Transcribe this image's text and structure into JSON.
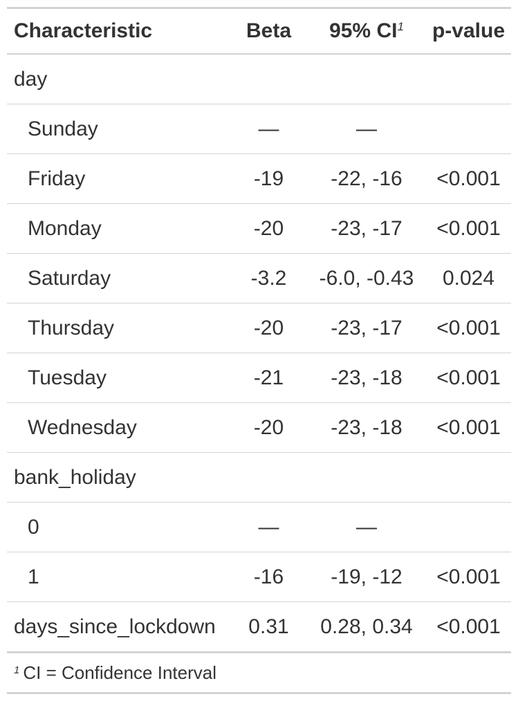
{
  "table": {
    "headers": {
      "characteristic": "Characteristic",
      "beta": "Beta",
      "ci": "95% CI",
      "ci_footnote_mark": "1",
      "pvalue": "p-value"
    },
    "rows": [
      {
        "label": "day",
        "beta": "",
        "ci": "",
        "p": "",
        "indent": false
      },
      {
        "label": "Sunday",
        "beta": "—",
        "ci": "—",
        "p": "",
        "indent": true
      },
      {
        "label": "Friday",
        "beta": "-19",
        "ci": "-22, -16",
        "p": "<0.001",
        "indent": true
      },
      {
        "label": "Monday",
        "beta": "-20",
        "ci": "-23, -17",
        "p": "<0.001",
        "indent": true
      },
      {
        "label": "Saturday",
        "beta": "-3.2",
        "ci": "-6.0, -0.43",
        "p": "0.024",
        "indent": true
      },
      {
        "label": "Thursday",
        "beta": "-20",
        "ci": "-23, -17",
        "p": "<0.001",
        "indent": true
      },
      {
        "label": "Tuesday",
        "beta": "-21",
        "ci": "-23, -18",
        "p": "<0.001",
        "indent": true
      },
      {
        "label": "Wednesday",
        "beta": "-20",
        "ci": "-23, -18",
        "p": "<0.001",
        "indent": true
      },
      {
        "label": "bank_holiday",
        "beta": "",
        "ci": "",
        "p": "",
        "indent": false
      },
      {
        "label": "0",
        "beta": "—",
        "ci": "—",
        "p": "",
        "indent": true
      },
      {
        "label": "1",
        "beta": "-16",
        "ci": "-19, -12",
        "p": "<0.001",
        "indent": true
      },
      {
        "label": "days_since_lockdown",
        "beta": "0.31",
        "ci": "0.28, 0.34",
        "p": "<0.001",
        "indent": false
      }
    ],
    "footnote": {
      "mark": "1",
      "text": "CI = Confidence Interval"
    }
  }
}
